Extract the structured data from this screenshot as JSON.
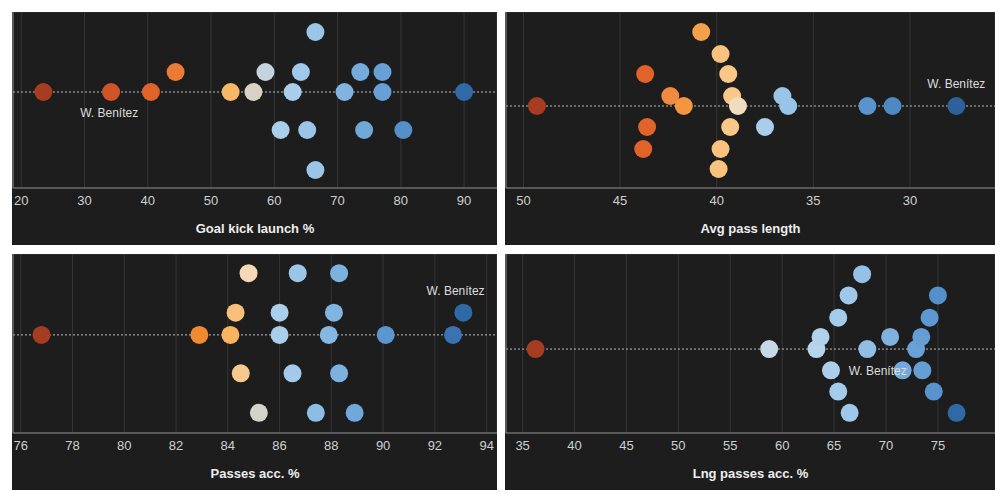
{
  "chart_data": [
    {
      "type": "scatter",
      "x_label": "Goal kick launch %",
      "xlim": [
        18.7,
        95.2
      ],
      "xticks": [
        20,
        30,
        40,
        50,
        60,
        70,
        80,
        90
      ],
      "ylim": [
        -4.8,
        4
      ],
      "yticks": [
        -4,
        -3,
        -2,
        -1,
        0,
        1,
        2,
        3,
        4
      ],
      "grid": true,
      "tick_labels": "x",
      "reference_y": 0,
      "x": [
        23.5,
        34.2,
        40.5,
        44.4,
        53.1,
        56.7,
        58.6,
        61.0,
        62.9,
        64.2,
        65.2,
        66.5,
        66.5,
        71.1,
        73.6,
        74.2,
        77.1,
        77.1,
        80.4,
        90.0
      ],
      "y": [
        0,
        0,
        0,
        1,
        0,
        0,
        1,
        -1.9,
        0,
        1,
        -1.9,
        3,
        -3.9,
        0,
        1,
        -1.9,
        1,
        0,
        -1.9,
        0
      ],
      "colors": [
        "#a63c22",
        "#cf5428",
        "#e0642a",
        "#eb7a35",
        "#f6b866",
        "#d7d2c4",
        "#c4d4de",
        "#a9cdea",
        "#a9cdea",
        "#9fc8ea",
        "#9bc5e8",
        "#9bc5e8",
        "#9bc5e8",
        "#7fb3e0",
        "#74abdc",
        "#70a8da",
        "#66a0d6",
        "#66a0d6",
        "#5590cb",
        "#2f6aa6"
      ],
      "annotations": [
        {
          "text": "W. Benítez",
          "x": 33.9,
          "y": -1.05
        }
      ]
    },
    {
      "type": "scatter",
      "x_label": "Avg pass length",
      "xlim": [
        50.9,
        25.6
      ],
      "xticks": [
        50,
        45,
        40,
        35,
        30
      ],
      "ylim": [
        -4.1,
        4.7
      ],
      "yticks": [
        -4,
        -3,
        -2,
        -1,
        0,
        1,
        2,
        3,
        4
      ],
      "grid": true,
      "tick_labels": "x",
      "reference_y": 0,
      "x": [
        49.3,
        40.8,
        39.8,
        43.7,
        39.4,
        42.4,
        39.2,
        41.7,
        38.9,
        36.6,
        36.3,
        37.5,
        32.2,
        30.9,
        27.6,
        43.6,
        39.3,
        43.8,
        39.8,
        39.9
      ],
      "y": [
        0,
        3.7,
        2.6,
        1.6,
        1.6,
        0.5,
        0.5,
        0,
        0,
        0.5,
        0,
        -1.05,
        0,
        0,
        0,
        -1.05,
        -1.05,
        -2.15,
        -2.15,
        -3.15
      ],
      "colors": [
        "#a63c22",
        "#f5a04a",
        "#f9c37e",
        "#e0642a",
        "#f9c888",
        "#f08a3e",
        "#f9c888",
        "#f4963f",
        "#f2dcc0",
        "#98c4e8",
        "#98c4e8",
        "#a9cdea",
        "#5a93cd",
        "#4e88c4",
        "#2c619c",
        "#e0642a",
        "#f9c888",
        "#e0642a",
        "#f9c37e",
        "#f9c37e"
      ],
      "annotations": [
        {
          "text": "W. Benítez",
          "x": 27.6,
          "y": 1.1
        }
      ]
    },
    {
      "type": "scatter",
      "x_label": "Passes acc. %",
      "xlim": [
        75.7,
        94.4
      ],
      "xticks": [
        76,
        78,
        80,
        82,
        84,
        86,
        88,
        90,
        92,
        94
      ],
      "ylim": [
        -4.85,
        4
      ],
      "yticks": [
        -4,
        -3,
        -2,
        -1,
        0,
        1,
        2,
        3,
        4
      ],
      "grid": true,
      "tick_labels": "x",
      "reference_y": 0,
      "x": [
        76.8,
        82.9,
        84.1,
        84.3,
        84.8,
        84.5,
        85.2,
        86.0,
        86.0,
        86.5,
        86.7,
        87.4,
        87.9,
        88.1,
        88.3,
        88.3,
        88.9,
        90.1,
        92.7,
        93.1
      ],
      "y": [
        0,
        0,
        0,
        1.1,
        3.05,
        -1.9,
        -3.85,
        1.1,
        0,
        -1.9,
        3.05,
        -3.85,
        0,
        1.1,
        3.05,
        -1.9,
        -3.85,
        0,
        0,
        1.1
      ],
      "colors": [
        "#a63c22",
        "#f08a2f",
        "#f9b45e",
        "#f9c07a",
        "#f4d8b8",
        "#f8c98f",
        "#d3d3cc",
        "#a9cdea",
        "#a9cdea",
        "#a3caea",
        "#9cc6e8",
        "#8dbde5",
        "#84b8e2",
        "#80b5e1",
        "#7cb2e0",
        "#7cb2e0",
        "#6fa8db",
        "#5c96ce",
        "#3a73b0",
        "#2f6aa6"
      ],
      "annotations": [
        {
          "text": "W. Benítez",
          "x": 92.8,
          "y": 2.2
        }
      ]
    },
    {
      "type": "scatter",
      "x_label": "Lng passes acc. %",
      "xlim": [
        33.4,
        80.5
      ],
      "xticks": [
        35,
        40,
        45,
        50,
        55,
        60,
        65,
        70,
        75
      ],
      "ylim": [
        -4.15,
        4.7
      ],
      "yticks": [
        -4,
        -3,
        -2,
        -1,
        0,
        1,
        2,
        3,
        4
      ],
      "grid": true,
      "tick_labels": "x",
      "reference_y": 0,
      "x": [
        36.25,
        58.75,
        63.3,
        63.7,
        64.7,
        65.4,
        65.4,
        66.4,
        66.5,
        67.7,
        68.2,
        70.4,
        71.6,
        72.9,
        73.4,
        73.5,
        74.2,
        74.6,
        75.0,
        76.8
      ],
      "y": [
        0,
        0,
        0,
        0.6,
        -1.05,
        1.55,
        -2.1,
        2.65,
        -3.15,
        3.7,
        0,
        0.6,
        -1.05,
        0,
        0.6,
        -1.05,
        1.55,
        -2.1,
        2.65,
        -3.15
      ],
      "colors": [
        "#a63c22",
        "#c7d9e6",
        "#b6d4ec",
        "#b2d2ec",
        "#acceeb",
        "#a5cbea",
        "#a5cbea",
        "#9ec7e9",
        "#9ec7e9",
        "#95c1e6",
        "#90bee5",
        "#7fb2df",
        "#74aadb",
        "#68a1d6",
        "#649ed4",
        "#649ed4",
        "#5d98d0",
        "#5893cd",
        "#5490cb",
        "#2f6aa6"
      ],
      "annotations": [
        {
          "text": "W. Benítez",
          "x": 69.2,
          "y": -1.05
        }
      ]
    }
  ]
}
